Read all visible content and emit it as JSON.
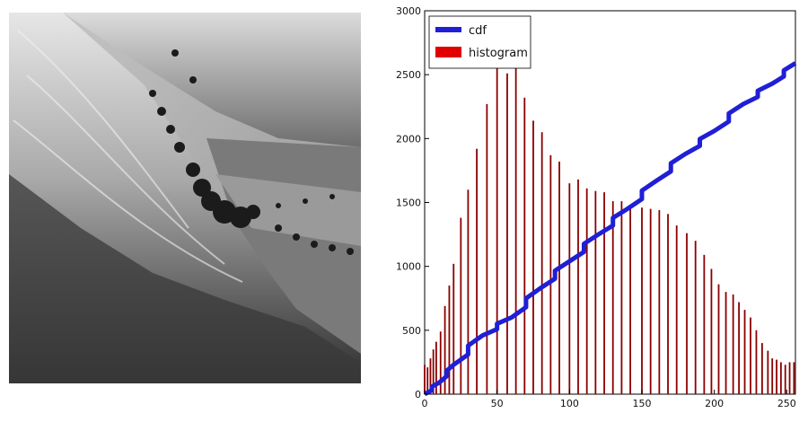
{
  "image_panel": {
    "description_icon": "landscape-photo-grayscale"
  },
  "chart_data": {
    "type": "bar",
    "title": "",
    "xlabel": "",
    "ylabel": "",
    "xlim": [
      0,
      256
    ],
    "ylim": [
      0,
      3000
    ],
    "xticks": [
      0,
      50,
      100,
      150,
      200,
      250
    ],
    "yticks": [
      0,
      500,
      1000,
      1500,
      2000,
      2500,
      3000
    ],
    "legend": {
      "placement": "top-left",
      "entries": [
        "cdf",
        "histogram"
      ]
    },
    "colors": {
      "cdf": "#1f1fd6",
      "histogram": "#8b0000",
      "histogram_legend": "#e00000"
    },
    "histogram": {
      "name": "histogram",
      "x": [
        0,
        2,
        4,
        6,
        8,
        11,
        14,
        17,
        20,
        25,
        30,
        36,
        43,
        50,
        57,
        63,
        69,
        75,
        81,
        87,
        93,
        100,
        106,
        112,
        118,
        124,
        130,
        136,
        142,
        150,
        156,
        162,
        168,
        174,
        181,
        187,
        193,
        198,
        203,
        208,
        213,
        217,
        221,
        225,
        229,
        233,
        237,
        240,
        243,
        246,
        249,
        252,
        255
      ],
      "values": [
        230,
        210,
        280,
        350,
        410,
        490,
        690,
        850,
        1020,
        1380,
        1600,
        1920,
        2270,
        2550,
        2510,
        2590,
        2320,
        2140,
        2050,
        1870,
        1820,
        1650,
        1680,
        1610,
        1590,
        1580,
        1510,
        1510,
        1480,
        1460,
        1450,
        1440,
        1410,
        1320,
        1260,
        1200,
        1090,
        980,
        860,
        800,
        780,
        720,
        660,
        600,
        500,
        400,
        340,
        280,
        270,
        250,
        230,
        250,
        250
      ]
    },
    "cdf": {
      "name": "cdf",
      "x": [
        0,
        10,
        20,
        40,
        60,
        80,
        100,
        120,
        140,
        160,
        180,
        200,
        220,
        240,
        256
      ],
      "values": [
        0,
        90,
        230,
        460,
        600,
        830,
        1040,
        1250,
        1450,
        1670,
        1880,
        2060,
        2270,
        2430,
        2590
      ]
    }
  }
}
